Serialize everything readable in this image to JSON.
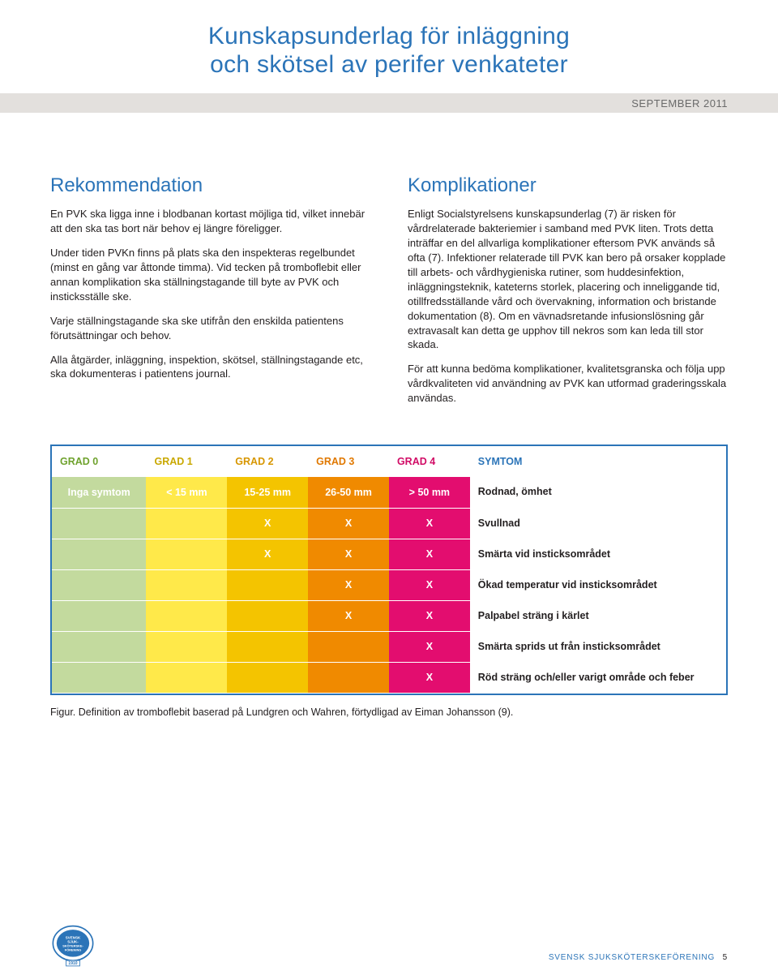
{
  "header": {
    "title_line1": "Kunskapsunderlag för inläggning",
    "title_line2": "och skötsel av perifer venkateter",
    "date_label": "SEPTEMBER 2011"
  },
  "left_col": {
    "heading": "Rekommendation",
    "p1": "En PVK ska ligga inne i blodbanan kortast möjliga tid, vilket innebär att den ska tas bort när behov ej längre föreligger.",
    "p2": "Under tiden PVKn finns på plats ska den inspekteras regelbundet (minst en gång var åttonde timma). Vid tecken på tromboflebit eller annan komplikation ska ställningstagande till byte av PVK och insticksställe ske.",
    "p3": "Varje ställningstagande ska ske utifrån den enskilda patientens förutsättningar och behov.",
    "p4": "Alla åtgärder, inläggning, inspektion, skötsel, ställningstagande etc, ska dokumenteras i patientens journal."
  },
  "right_col": {
    "heading": "Komplikationer",
    "p1": "Enligt Socialstyrelsens kunskapsunderlag (7) är risken för vårdrelaterade bakteriemier i samband med PVK liten. Trots detta inträffar en del allvarliga komplikationer eftersom PVK används så ofta (7). Infektioner relaterade till PVK kan bero på orsaker kopplade till arbets- och vårdhygieniska rutiner, som huddesinfektion, inläggningsteknik, kateterns storlek, placering och inneliggande tid, otillfredsställande vård och övervakning, information och bristande dokumentation (8). Om en vävnadsretande infusionslösning går extravasalt kan detta ge upphov till nekros som kan leda till stor skada.",
    "p2": "För att kunna bedöma komplikationer, kvalitetsgranska och följa upp vårdkvaliteten vid användning av PVK kan utformad graderingsskala användas."
  },
  "grading_table": {
    "type": "table",
    "columns": [
      {
        "key": "g0",
        "label": "GRAD 0",
        "color": "#6fa22e",
        "bg": "#c3da9e"
      },
      {
        "key": "g1",
        "label": "GRAD 1",
        "color": "#c9a800",
        "bg": "#ffe94a"
      },
      {
        "key": "g2",
        "label": "GRAD 2",
        "color": "#d79600",
        "bg": "#f4c400"
      },
      {
        "key": "g3",
        "label": "GRAD 3",
        "color": "#e07800",
        "bg": "#f08a00"
      },
      {
        "key": "g4",
        "label": "GRAD 4",
        "color": "#d10c66",
        "bg": "#e30d6f"
      },
      {
        "key": "sym",
        "label": "SYMTOM",
        "color": "#2b74b8",
        "bg": "#ffffff"
      }
    ],
    "rows": [
      {
        "g0": "Inga symtom",
        "g1": "< 15 mm",
        "g2": "15-25 mm",
        "g3": "26-50 mm",
        "g4": "> 50 mm",
        "sym": "Rodnad, ömhet"
      },
      {
        "g0": "",
        "g1": "",
        "g2": "X",
        "g3": "X",
        "g4": "X",
        "sym": "Svullnad"
      },
      {
        "g0": "",
        "g1": "",
        "g2": "X",
        "g3": "X",
        "g4": "X",
        "sym": "Smärta vid insticksområdet"
      },
      {
        "g0": "",
        "g1": "",
        "g2": "",
        "g3": "X",
        "g4": "X",
        "sym": "Ökad temperatur vid insticksområdet"
      },
      {
        "g0": "",
        "g1": "",
        "g2": "",
        "g3": "X",
        "g4": "X",
        "sym": "Palpabel sträng i kärlet"
      },
      {
        "g0": "",
        "g1": "",
        "g2": "",
        "g3": "",
        "g4": "X",
        "sym": "Smärta sprids ut från insticksområdet"
      },
      {
        "g0": "",
        "g1": "",
        "g2": "",
        "g3": "",
        "g4": "X",
        "sym": "Röd sträng och/eller varigt område och feber"
      }
    ],
    "col_widths": [
      "14%",
      "12%",
      "12%",
      "12%",
      "12%",
      "38%"
    ],
    "border_color": "#2b74b8",
    "row_divider_color": "#ffffff",
    "header_bg": "#ffffff",
    "x_mark_color": "#ffffff",
    "sym_text_color": "#231f20"
  },
  "caption": "Figur. Definition av tromboflebit baserad på Lundgren och Wahren, förtydligad av Eiman Johansson (9).",
  "footer": {
    "org": "SVENSK SJUKSKÖTERSKEFÖRENING",
    "page": "5",
    "logo_text_top": "SVENSK",
    "logo_text_mid1": "SJUK-",
    "logo_text_mid2": "SKÖTERSKE-",
    "logo_text_bot": "FÖRENING",
    "logo_year": "1910",
    "logo_color": "#2b74b8"
  }
}
